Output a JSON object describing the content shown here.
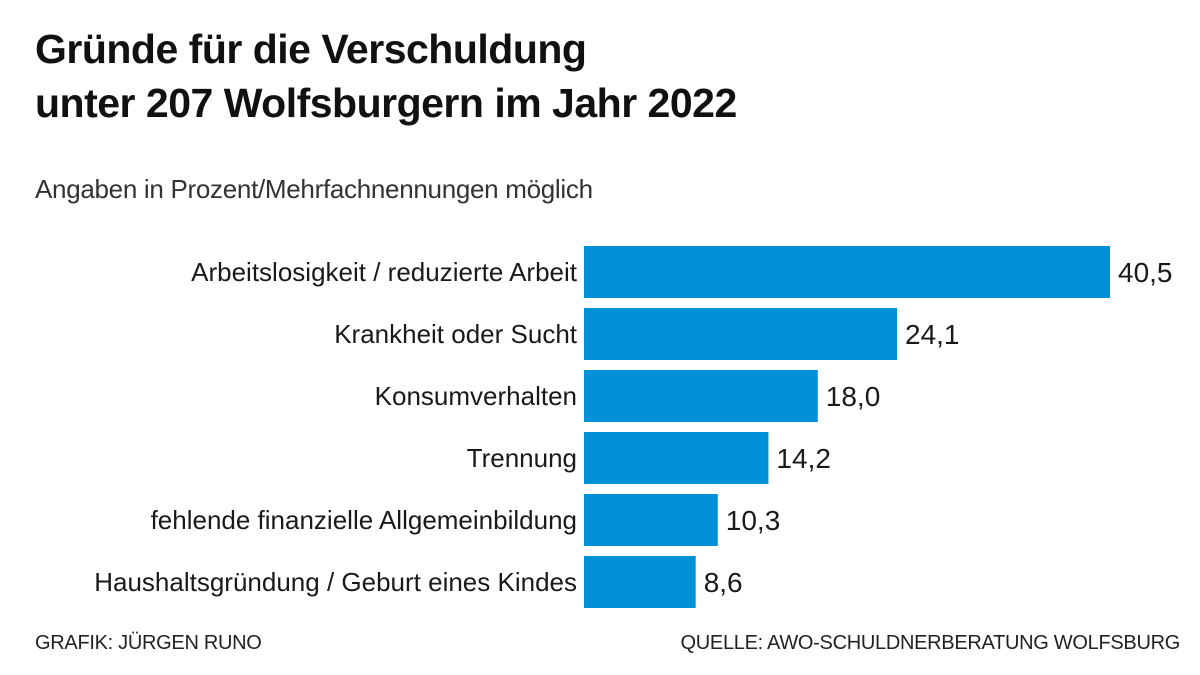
{
  "title_line1": "Gründe für die Verschuldung",
  "title_line2": "unter 207 Wolfsburgern im Jahr 2022",
  "subtitle": "Angaben in Prozent/Mehrfachnennungen möglich",
  "footer": {
    "credit": "GRAFIK: JÜRGEN RUNO",
    "source": "QUELLE: AWO-SCHULDNERBERATUNG WOLFSBURG"
  },
  "colors": {
    "bar": "#0090d8"
  },
  "chart_data": {
    "type": "bar",
    "orientation": "horizontal",
    "categories": [
      "Arbeitslosigkeit / reduzierte Arbeit",
      "Krankheit oder Sucht",
      "Konsumverhalten",
      "Trennung",
      "fehlende finanzielle Allgemeinbildung",
      "Haushaltsgründung / Geburt eines Kindes"
    ],
    "values": [
      40.5,
      24.1,
      18.0,
      14.2,
      10.3,
      8.6
    ],
    "value_labels": [
      "40,5",
      "24,1",
      "18,0",
      "14,2",
      "10,3",
      "8,6"
    ],
    "grid": false
  }
}
